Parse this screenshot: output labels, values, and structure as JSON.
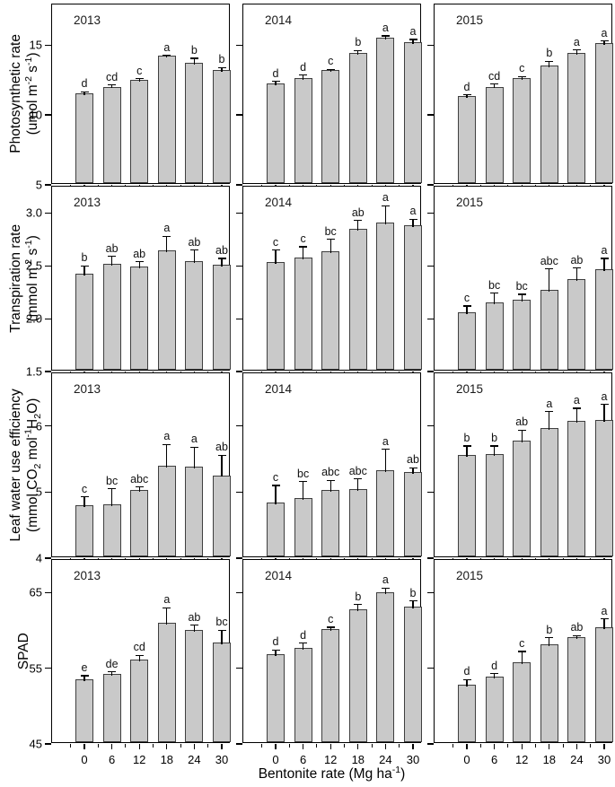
{
  "figure_title": "Multi-panel bar figure: plant gas exchange and SPAD responses to bentonite rate (2013-2015)",
  "colors": {
    "background": "#ffffff",
    "bar_fill": "#c9c9c9",
    "bar_edge": "#3f3f3f",
    "axis": "#000000",
    "text": "#000000"
  },
  "chart_data": {
    "type": "bar",
    "categories": [
      0,
      6,
      12,
      18,
      24,
      30
    ],
    "xtick_labels": [
      "0",
      "6",
      "12",
      "18",
      "24",
      "30"
    ],
    "years": [
      "2013",
      "2014",
      "2015"
    ],
    "xlabel_segments": [
      [
        "t",
        "Bentonite rate (Mg ha"
      ],
      [
        "sup",
        "-1"
      ],
      [
        "t",
        ")"
      ]
    ],
    "grid": "off",
    "legend": "none",
    "error_bars": "upper, with caps",
    "sig_letters_note": "letters above error bars denote significance groups",
    "rows": [
      {
        "name": "Photosynthetic rate",
        "unit_segments": [
          [
            "t",
            "(umol m"
          ],
          [
            "sup",
            "-2"
          ],
          [
            "t",
            " s"
          ],
          [
            "sup",
            "-1"
          ],
          [
            "t",
            ")"
          ]
        ],
        "ylim": [
          5,
          17.9
        ],
        "yticks": [
          5,
          10,
          15
        ],
        "ytick_labels": [
          "5",
          "10",
          "15"
        ],
        "panels": [
          {
            "year": "2013",
            "values": [
              11.4,
              11.9,
              12.4,
              14.1,
              13.6,
              13.1
            ],
            "errors": [
              0.25,
              0.25,
              0.2,
              0.15,
              0.45,
              0.3
            ],
            "letters": [
              "d",
              "cd",
              "c",
              "a",
              "b",
              "b"
            ]
          },
          {
            "year": "2014",
            "values": [
              12.1,
              12.5,
              13.1,
              14.3,
              15.4,
              15.1
            ],
            "errors": [
              0.3,
              0.35,
              0.15,
              0.3,
              0.25,
              0.3
            ],
            "letters": [
              "d",
              "d",
              "c",
              "b",
              "a",
              "a"
            ]
          },
          {
            "year": "2015",
            "values": [
              11.2,
              11.9,
              12.5,
              13.4,
              14.3,
              15.0
            ],
            "errors": [
              0.25,
              0.3,
              0.25,
              0.45,
              0.35,
              0.3
            ],
            "letters": [
              "d",
              "cd",
              "c",
              "b",
              "a",
              "a"
            ]
          }
        ]
      },
      {
        "name": "Transpiration rate",
        "unit_segments": [
          [
            "t",
            "(mmol m"
          ],
          [
            "sup",
            "-2"
          ],
          [
            "t",
            " s"
          ],
          [
            "sup",
            "-1"
          ],
          [
            "t",
            ")"
          ]
        ],
        "ylim": [
          1.5,
          3.25
        ],
        "yticks": [
          1.5,
          2.0,
          2.5,
          3.0
        ],
        "ytick_labels": [
          "1.5",
          "2.0",
          "2.5",
          "3.0"
        ],
        "panels": [
          {
            "year": "2013",
            "values": [
              2.41,
              2.5,
              2.48,
              2.63,
              2.53,
              2.49
            ],
            "errors": [
              0.09,
              0.09,
              0.06,
              0.15,
              0.12,
              0.08
            ],
            "letters": [
              "b",
              "ab",
              "ab",
              "a",
              "ab",
              "ab"
            ]
          },
          {
            "year": "2014",
            "values": [
              2.52,
              2.56,
              2.62,
              2.83,
              2.89,
              2.87
            ],
            "errors": [
              0.13,
              0.12,
              0.13,
              0.1,
              0.18,
              0.07
            ],
            "letters": [
              "c",
              "c",
              "bc",
              "ab",
              "a",
              "a"
            ]
          },
          {
            "year": "2015",
            "values": [
              2.04,
              2.14,
              2.16,
              2.26,
              2.36,
              2.45
            ],
            "errors": [
              0.08,
              0.1,
              0.07,
              0.21,
              0.12,
              0.12
            ],
            "letters": [
              "c",
              "bc",
              "bc",
              "abc",
              "ab",
              "a"
            ]
          }
        ]
      },
      {
        "name": "Leaf water use efficiency",
        "unit_segments": [
          [
            "t",
            "(mmol CO"
          ],
          [
            "sub",
            "2"
          ],
          [
            "t",
            " mol"
          ],
          [
            "sup",
            "-1"
          ],
          [
            "t",
            "H"
          ],
          [
            "sub",
            "2"
          ],
          [
            "t",
            "O)"
          ]
        ],
        "ylim": [
          4,
          6.8
        ],
        "yticks": [
          4,
          5,
          6
        ],
        "ytick_labels": [
          "4",
          "5",
          "6"
        ],
        "panels": [
          {
            "year": "2013",
            "values": [
              4.78,
              4.79,
              5.01,
              5.37,
              5.36,
              5.23
            ],
            "errors": [
              0.15,
              0.26,
              0.07,
              0.35,
              0.32,
              0.33
            ],
            "letters": [
              "c",
              "bc",
              "abc",
              "a",
              "a",
              "ab"
            ]
          },
          {
            "year": "2014",
            "values": [
              4.82,
              4.89,
              5.0,
              5.02,
              5.3,
              5.28
            ],
            "errors": [
              0.28,
              0.27,
              0.18,
              0.18,
              0.35,
              0.09
            ],
            "letters": [
              "c",
              "bc",
              "abc",
              "abc",
              "a",
              "ab"
            ]
          },
          {
            "year": "2015",
            "values": [
              5.53,
              5.55,
              5.76,
              5.95,
              6.05,
              6.07
            ],
            "errors": [
              0.17,
              0.15,
              0.18,
              0.27,
              0.22,
              0.26
            ],
            "letters": [
              "b",
              "b",
              "ab",
              "a",
              "a",
              "a"
            ]
          }
        ]
      },
      {
        "name": "SPAD",
        "unit_segments": [],
        "ylim": [
          45,
          69.3
        ],
        "yticks": [
          45,
          55,
          65
        ],
        "ytick_labels": [
          "45",
          "55",
          "65"
        ],
        "panels": [
          {
            "year": "2013",
            "values": [
              53.3,
              54.0,
              55.9,
              60.8,
              59.8,
              58.2
            ],
            "errors": [
              0.7,
              0.5,
              0.8,
              2.2,
              0.9,
              1.8
            ],
            "letters": [
              "e",
              "de",
              "cd",
              "a",
              "ab",
              "bc"
            ]
          },
          {
            "year": "2014",
            "values": [
              56.6,
              57.4,
              59.9,
              62.5,
              64.8,
              62.9
            ],
            "errors": [
              0.8,
              0.9,
              0.5,
              0.9,
              0.8,
              1.0
            ],
            "letters": [
              "d",
              "d",
              "c",
              "b",
              "a",
              "b"
            ]
          },
          {
            "year": "2015",
            "values": [
              52.6,
              53.6,
              55.5,
              57.9,
              58.9,
              60.2
            ],
            "errors": [
              0.9,
              0.7,
              1.7,
              1.1,
              0.4,
              1.3
            ],
            "letters": [
              "d",
              "d",
              "c",
              "b",
              "ab",
              "a"
            ]
          }
        ]
      }
    ]
  }
}
